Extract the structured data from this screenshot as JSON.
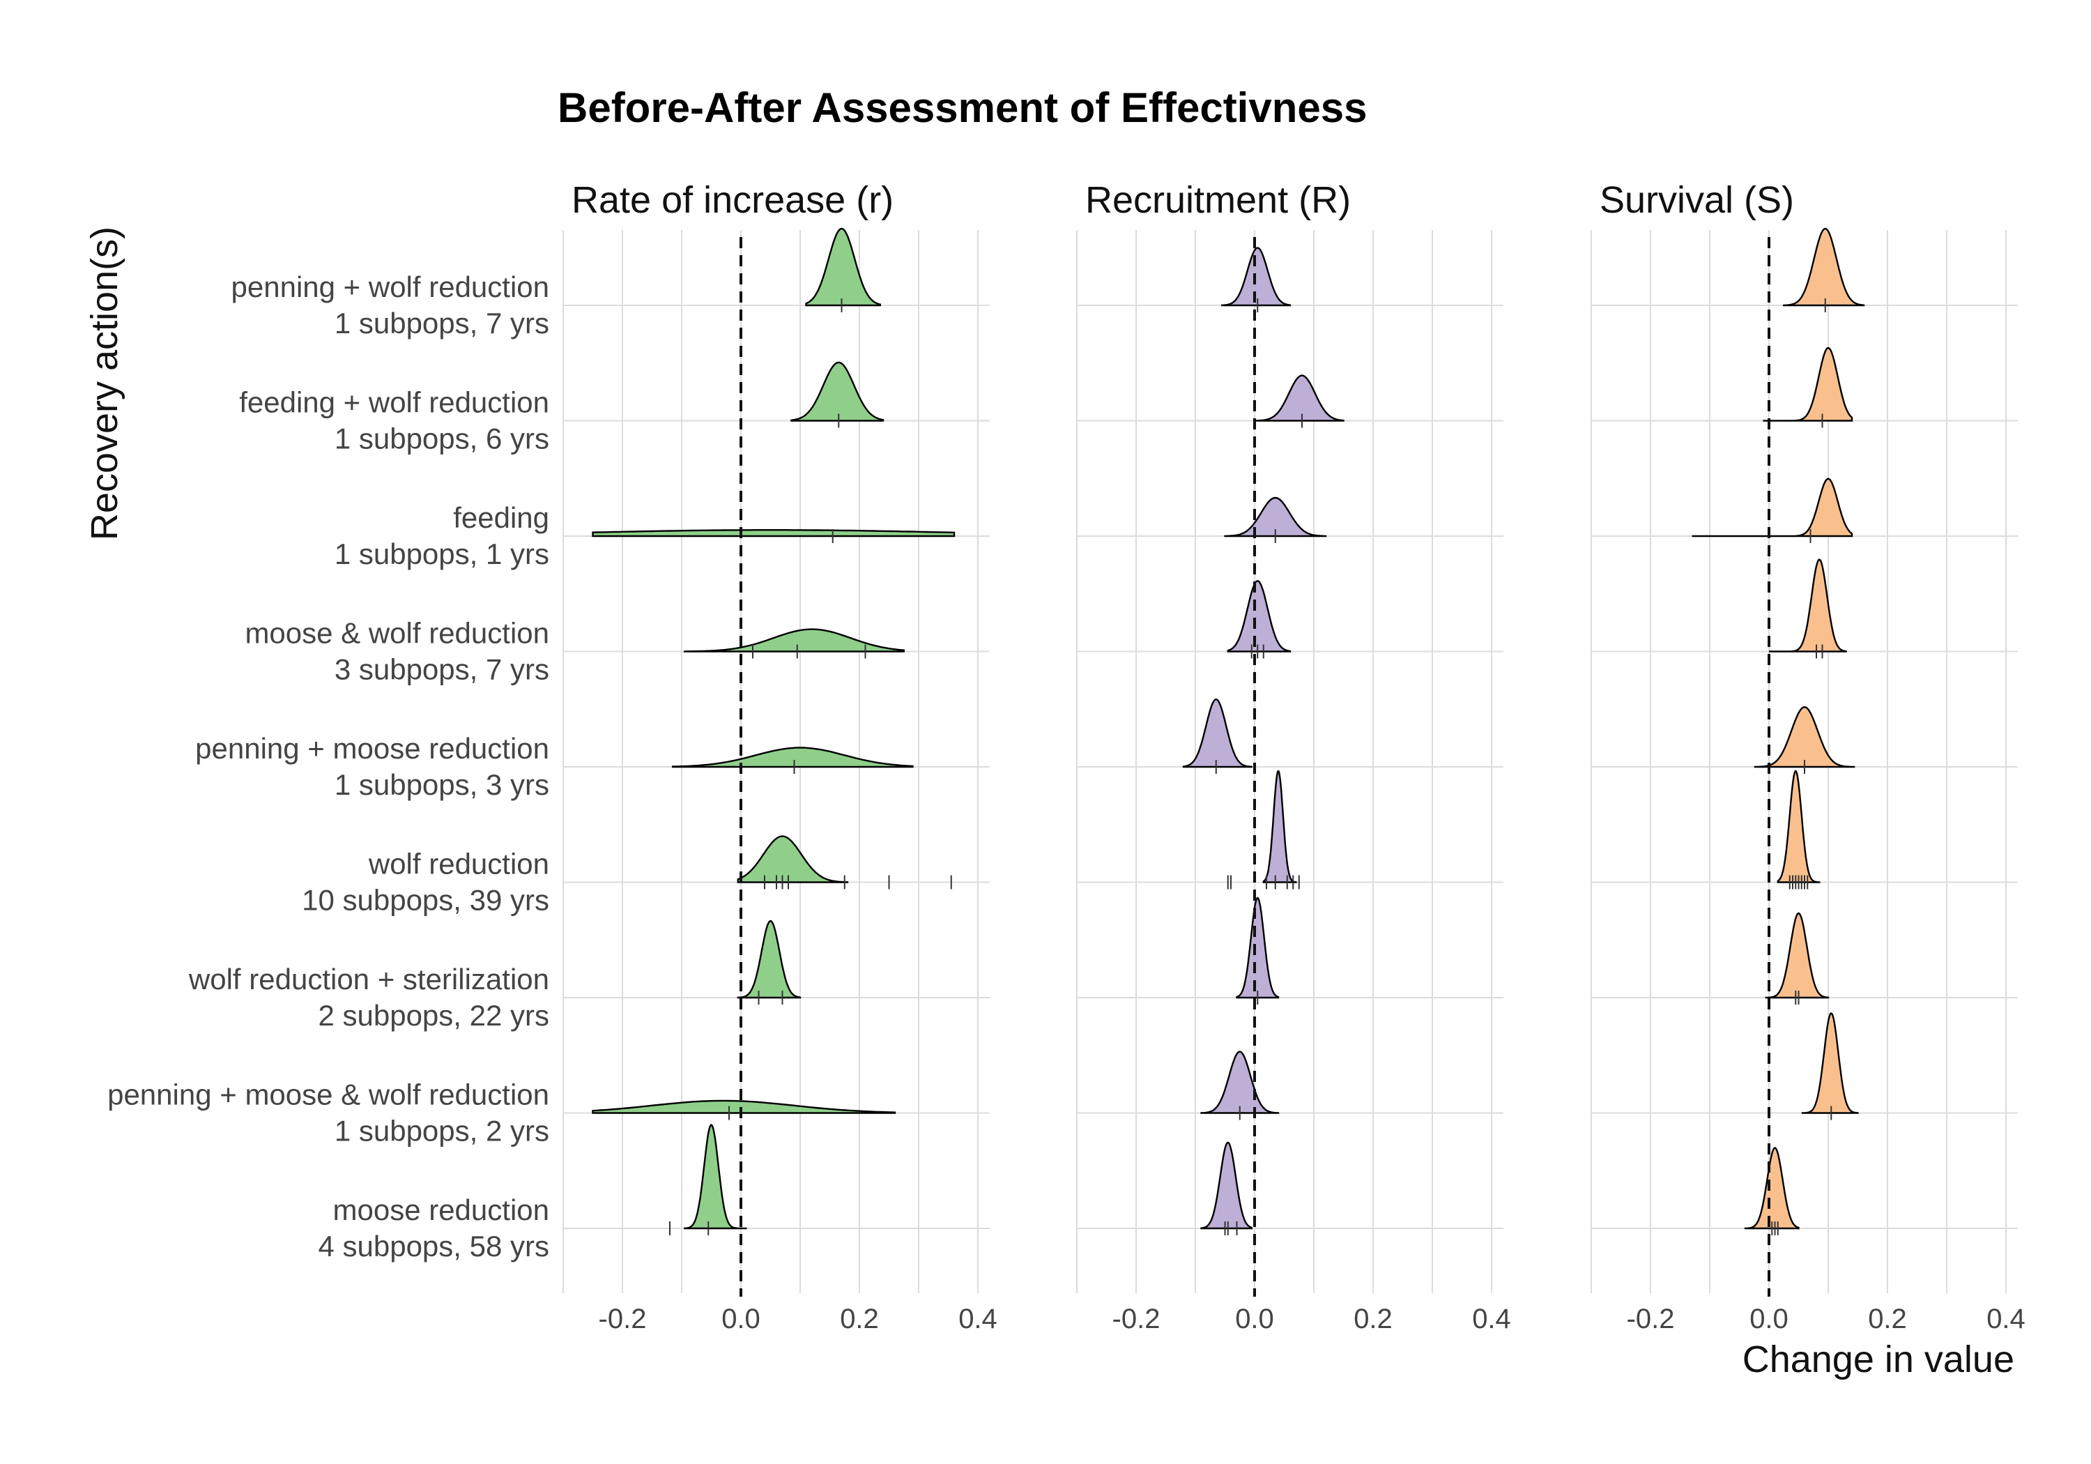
{
  "chart_data": {
    "type": "ridgeline",
    "title": "Before-After Assessment of Effectivness",
    "ylabel": "Recovery action(s)",
    "xlabel": "Change in value",
    "xlim": [
      -0.3,
      0.42
    ],
    "x_ticks": [
      -0.2,
      0.0,
      0.2,
      0.4
    ],
    "x_tick_labels": [
      "-0.2",
      "0.0",
      "0.2",
      "0.4"
    ],
    "reference_line": 0,
    "grid": true,
    "categories": [
      {
        "name": "penning + wolf reduction",
        "detail": "1 subpops, 7 yrs"
      },
      {
        "name": "feeding + wolf reduction",
        "detail": "1 subpops, 6 yrs"
      },
      {
        "name": "feeding",
        "detail": "1 subpops, 1 yrs"
      },
      {
        "name": "moose & wolf reduction",
        "detail": "3 subpops, 7 yrs"
      },
      {
        "name": "penning + moose reduction",
        "detail": "1 subpops, 3 yrs"
      },
      {
        "name": "wolf reduction",
        "detail": "10 subpops, 39 yrs"
      },
      {
        "name": "wolf reduction + sterilization",
        "detail": "2 subpops, 22 yrs"
      },
      {
        "name": "penning + moose & wolf reduction",
        "detail": "1 subpops, 2 yrs"
      },
      {
        "name": "moose reduction",
        "detail": "4 subpops, 58 yrs"
      }
    ],
    "panels": [
      {
        "name": "Rate of increase (r)",
        "color": "#8fcf8a",
        "distributions": [
          {
            "peak": 0.17,
            "sd": 0.022,
            "rel_height": 1.0,
            "range": [
              0.11,
              0.235
            ],
            "rug": [
              0.17
            ]
          },
          {
            "peak": 0.165,
            "sd": 0.026,
            "rel_height": 0.76,
            "range": [
              0.085,
              0.24
            ],
            "rug": [
              0.165
            ]
          },
          {
            "peak": 0.05,
            "sd": 0.3,
            "rel_height": 0.08,
            "range": [
              -0.25,
              0.36
            ],
            "rug": [
              0.155
            ]
          },
          {
            "peak": 0.12,
            "sd": 0.065,
            "rel_height": 0.29,
            "range": [
              -0.095,
              0.275
            ],
            "rug": [
              0.02,
              0.095,
              0.21
            ]
          },
          {
            "peak": 0.1,
            "sd": 0.075,
            "rel_height": 0.25,
            "range": [
              -0.115,
              0.29
            ],
            "rug": [
              0.09
            ]
          },
          {
            "peak": 0.07,
            "sd": 0.032,
            "rel_height": 0.6,
            "range": [
              -0.005,
              0.18
            ],
            "rug": [
              0.04,
              0.06,
              0.07,
              0.08,
              0.175,
              0.25,
              0.355
            ]
          },
          {
            "peak": 0.05,
            "sd": 0.015,
            "rel_height": 1.0,
            "range": [
              -0.005,
              0.1
            ],
            "rug": [
              0.03,
              0.07
            ]
          },
          {
            "peak": -0.03,
            "sd": 0.12,
            "rel_height": 0.16,
            "range": [
              -0.25,
              0.26
            ],
            "rug": [
              -0.02
            ]
          },
          {
            "peak": -0.05,
            "sd": 0.012,
            "rel_height": 1.35,
            "range": [
              -0.095,
              0.01
            ],
            "rug": [
              -0.12,
              -0.055
            ]
          }
        ]
      },
      {
        "name": "Recruitment (R)",
        "color": "#bdafd6",
        "distributions": [
          {
            "peak": 0.005,
            "sd": 0.017,
            "rel_height": 0.75,
            "range": [
              -0.055,
              0.06
            ],
            "rug": [
              0.005
            ]
          },
          {
            "peak": 0.08,
            "sd": 0.022,
            "rel_height": 0.59,
            "range": [
              0.0,
              0.15
            ],
            "rug": [
              0.08
            ]
          },
          {
            "peak": 0.035,
            "sd": 0.024,
            "rel_height": 0.5,
            "range": [
              -0.05,
              0.12
            ],
            "rug": [
              0.035
            ]
          },
          {
            "peak": 0.005,
            "sd": 0.017,
            "rel_height": 0.92,
            "range": [
              -0.045,
              0.06
            ],
            "rug": [
              -0.005,
              0.005,
              0.015
            ]
          },
          {
            "peak": -0.065,
            "sd": 0.017,
            "rel_height": 0.88,
            "range": [
              -0.12,
              -0.005
            ],
            "rug": [
              -0.065
            ]
          },
          {
            "peak": 0.04,
            "sd": 0.008,
            "rel_height": 1.45,
            "range": [
              0.015,
              0.07
            ],
            "rug": [
              -0.045,
              -0.04,
              0.02,
              0.035,
              0.055,
              0.065,
              0.075
            ]
          },
          {
            "peak": 0.005,
            "sd": 0.011,
            "rel_height": 1.3,
            "range": [
              -0.03,
              0.04
            ],
            "rug": [
              0.005
            ]
          },
          {
            "peak": -0.025,
            "sd": 0.018,
            "rel_height": 0.8,
            "range": [
              -0.09,
              0.04
            ],
            "rug": [
              -0.025
            ]
          },
          {
            "peak": -0.045,
            "sd": 0.013,
            "rel_height": 1.12,
            "range": [
              -0.09,
              -0.005
            ],
            "rug": [
              -0.05,
              -0.045,
              -0.03
            ]
          }
        ]
      },
      {
        "name": "Survival (S)",
        "color": "#f9c08e",
        "distributions": [
          {
            "peak": 0.095,
            "sd": 0.019,
            "rel_height": 1.0,
            "range": [
              0.025,
              0.16
            ],
            "rug": [
              0.095
            ]
          },
          {
            "peak": 0.1,
            "sd": 0.016,
            "rel_height": 0.95,
            "range": [
              -0.01,
              0.14
            ],
            "rug": [
              0.09
            ]
          },
          {
            "peak": 0.1,
            "sd": 0.016,
            "rel_height": 0.75,
            "range": [
              -0.13,
              0.14
            ],
            "rug": [
              0.07
            ]
          },
          {
            "peak": 0.085,
            "sd": 0.013,
            "rel_height": 1.2,
            "range": [
              0.0,
              0.13
            ],
            "rug": [
              0.08,
              0.09
            ]
          },
          {
            "peak": 0.06,
            "sd": 0.022,
            "rel_height": 0.78,
            "range": [
              -0.025,
              0.145
            ],
            "rug": [
              0.06
            ]
          },
          {
            "peak": 0.045,
            "sd": 0.01,
            "rel_height": 1.45,
            "range": [
              0.015,
              0.085
            ],
            "rug": [
              0.035,
              0.04,
              0.045,
              0.05,
              0.055,
              0.06,
              0.065
            ]
          },
          {
            "peak": 0.05,
            "sd": 0.014,
            "rel_height": 1.1,
            "range": [
              -0.005,
              0.1
            ],
            "rug": [
              0.045,
              0.05
            ]
          },
          {
            "peak": 0.105,
            "sd": 0.012,
            "rel_height": 1.3,
            "range": [
              0.055,
              0.15
            ],
            "rug": [
              0.105
            ]
          },
          {
            "peak": 0.01,
            "sd": 0.013,
            "rel_height": 1.05,
            "range": [
              -0.04,
              0.05
            ],
            "rug": [
              0.005,
              0.01,
              0.015
            ]
          }
        ]
      }
    ]
  }
}
